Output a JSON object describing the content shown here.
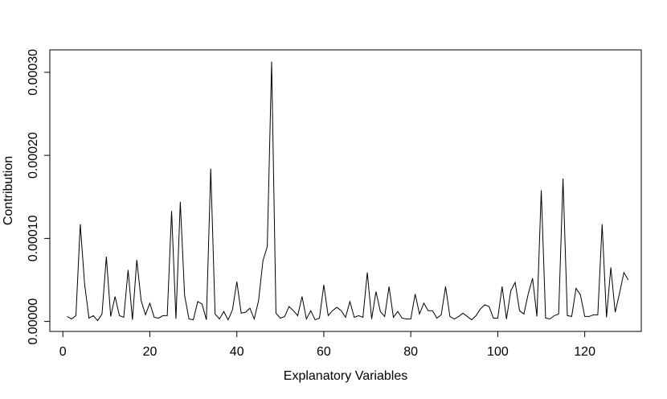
{
  "chart_data": {
    "type": "line",
    "title": "",
    "xlabel": "Explanatory Variables",
    "ylabel": "Contribution",
    "xlim": [
      -3,
      133
    ],
    "ylim": [
      -1.2e-05,
      0.000327
    ],
    "xticks": [
      0,
      20,
      40,
      60,
      80,
      100,
      120
    ],
    "yticks": [
      0.0,
      0.0001,
      0.0002,
      0.0003
    ],
    "xtick_labels": [
      "0",
      "20",
      "40",
      "60",
      "80",
      "100",
      "120"
    ],
    "ytick_labels": [
      "0.00000",
      "0.00010",
      "0.00020",
      "0.00030"
    ],
    "grid": false,
    "legend": "none",
    "line_color": "#000000",
    "series": [
      {
        "x": [
          1,
          2,
          3,
          4,
          5,
          6,
          7,
          8,
          9,
          10,
          11,
          12,
          13,
          14,
          15,
          16,
          17,
          18,
          19,
          20,
          21,
          22,
          23,
          24,
          25,
          26,
          27,
          28,
          29,
          30,
          31,
          32,
          33,
          34,
          35,
          36,
          37,
          38,
          39,
          40,
          41,
          42,
          43,
          44,
          45,
          46,
          47,
          48,
          49,
          50,
          51,
          52,
          53,
          54,
          55,
          56,
          57,
          58,
          59,
          60,
          61,
          62,
          63,
          64,
          65,
          66,
          67,
          68,
          69,
          70,
          71,
          72,
          73,
          74,
          75,
          76,
          77,
          78,
          79,
          80,
          81,
          82,
          83,
          84,
          85,
          86,
          87,
          88,
          89,
          90,
          91,
          92,
          93,
          94,
          95,
          96,
          97,
          98,
          99,
          100,
          101,
          102,
          103,
          104,
          105,
          106,
          107,
          108,
          109,
          110,
          111,
          112,
          113,
          114,
          115,
          116,
          117,
          118,
          119,
          120,
          121,
          122,
          123,
          124,
          125,
          126,
          127,
          128,
          129,
          130
        ],
        "values": [
          6e-06,
          3e-06,
          7e-06,
          0.000117,
          4.5e-05,
          4e-06,
          7e-06,
          1e-06,
          9e-06,
          7.8e-05,
          6e-06,
          3e-05,
          7e-06,
          5e-06,
          6.2e-05,
          2e-06,
          7.4e-05,
          2.5e-05,
          8e-06,
          2.2e-05,
          5e-06,
          4e-06,
          7e-06,
          7e-06,
          0.000133,
          3e-06,
          0.000144,
          3.1e-05,
          3e-06,
          2e-06,
          2.4e-05,
          2.1e-05,
          2e-06,
          0.000184,
          9e-06,
          3e-06,
          1.2e-05,
          2e-06,
          1.4e-05,
          4.8e-05,
          1e-05,
          1.1e-05,
          1.6e-05,
          3e-06,
          2.5e-05,
          7.3e-05,
          9e-05,
          0.000313,
          1e-05,
          4e-06,
          6e-06,
          1.8e-05,
          1.3e-05,
          7e-06,
          3e-05,
          3e-06,
          1.3e-05,
          2e-06,
          4e-06,
          4.4e-05,
          7e-06,
          1.3e-05,
          1.7e-05,
          1.3e-05,
          5e-06,
          2.4e-05,
          5e-06,
          7e-06,
          5e-06,
          5.9e-05,
          3e-06,
          3.6e-05,
          1.2e-05,
          6e-06,
          4.2e-05,
          5e-06,
          1.2e-05,
          4e-06,
          3e-06,
          3e-06,
          3.3e-05,
          9e-06,
          2.2e-05,
          1.3e-05,
          1.3e-05,
          4e-06,
          8e-06,
          4.2e-05,
          6e-06,
          3e-06,
          6e-06,
          1e-05,
          6e-06,
          2e-06,
          7e-06,
          1.5e-05,
          2e-05,
          1.8e-05,
          4e-06,
          4e-06,
          4.2e-05,
          3e-06,
          3.7e-05,
          4.7e-05,
          1.3e-05,
          9e-06,
          3.3e-05,
          5.2e-05,
          6e-06,
          0.000158,
          4e-06,
          3e-06,
          7e-06,
          9e-06,
          0.000172,
          7e-06,
          6e-06,
          4e-05,
          3.2e-05,
          6e-06,
          6e-06,
          8e-06,
          8e-06,
          0.000117,
          5e-06,
          6.5e-05,
          1.1e-05,
          3.4e-05,
          5.9e-05,
          5e-05
        ]
      }
    ]
  }
}
